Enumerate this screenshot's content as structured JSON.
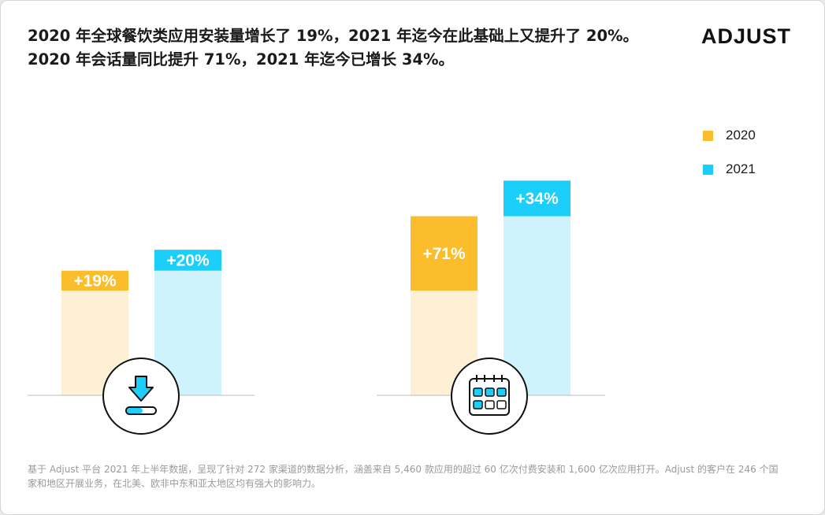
{
  "headline": "2020 年全球餐饮类应用安装量增长了 19%，2021 年迄今在此基础上又提升了 20%。2020 年会话量同比提升 71%，2021 年迄今已增长 34%。",
  "brand": {
    "logo_text": "ADJUST"
  },
  "footnote": "基于 Adjust 平台 2021 年上半年数据，呈现了针对 272 家渠道的数据分析，涵盖来自 5,460 款应用的超过 60 亿次付费安装和 1,600 亿次应用打开。Adjust 的客户在 246 个国家和地区开展业务，在北美、欧非中东和亚太地区均有强大的影响力。",
  "colors": {
    "s2020": "#fbbd2c",
    "s2020_light": "#fdf0d5",
    "s2021": "#1ccffb",
    "s2021_light": "#cff3fd",
    "axis": "#bdbdbd",
    "label": "#ffffff"
  },
  "icons": [
    "download-icon",
    "calendar-icon"
  ],
  "chart_data": {
    "type": "bar",
    "stacked": true,
    "legend_position": "top-right",
    "grid": false,
    "series": [
      {
        "name": "2020",
        "color": "#fbbd2c"
      },
      {
        "name": "2021",
        "color": "#1ccffb"
      }
    ],
    "groups": [
      {
        "metric": "installs",
        "icon": "download-icon",
        "bars": [
          {
            "series": "2020",
            "base": 100,
            "growth": 19,
            "label": "+19%"
          },
          {
            "series": "2021",
            "base": 119,
            "growth": 20,
            "label": "+20%"
          }
        ]
      },
      {
        "metric": "sessions",
        "icon": "calendar-icon",
        "bars": [
          {
            "series": "2020",
            "base": 100,
            "growth": 71,
            "label": "+71%"
          },
          {
            "series": "2021",
            "base": 171,
            "growth": 34,
            "label": "+34%"
          }
        ]
      }
    ]
  }
}
